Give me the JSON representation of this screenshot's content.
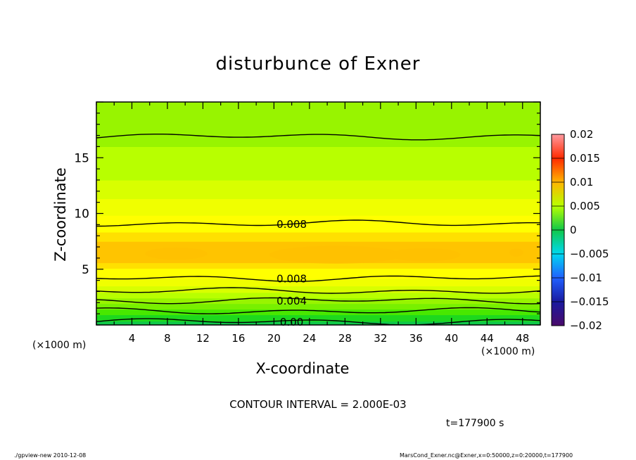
{
  "chart_data": {
    "type": "heatmap",
    "title": "disturbunce of Exner",
    "xlabel": "X-coordinate",
    "ylabel": "Z-coordinate",
    "x_unit_label": "(×1000 m)",
    "y_unit_label": "(×1000 m)",
    "xlim": [
      0,
      50
    ],
    "ylim": [
      0,
      20
    ],
    "xticks": [
      "4",
      "8",
      "12",
      "16",
      "20",
      "24",
      "28",
      "32",
      "36",
      "40",
      "44",
      "48"
    ],
    "yticks": [
      "5",
      "10",
      "15"
    ],
    "colorbar": {
      "min": -0.02,
      "max": 0.02,
      "ticks": [
        "0.02",
        "0.015",
        "0.01",
        "0.005",
        "0",
        "−0.005",
        "−0.01",
        "−0.015",
        "−0.02"
      ]
    },
    "profile": {
      "z": [
        0,
        0.5,
        1,
        1.5,
        2,
        2.5,
        3,
        3.5,
        4,
        4.5,
        5,
        5.5,
        6,
        6.5,
        7,
        8,
        9,
        10,
        11,
        12,
        12.5,
        13,
        14,
        15,
        16,
        17,
        18,
        19,
        20
      ],
      "value": [
        0.0005,
        0.0012,
        0.0022,
        0.0032,
        0.0042,
        0.0052,
        0.0062,
        0.007,
        0.0078,
        0.0084,
        0.0089,
        0.0094,
        0.0098,
        0.01,
        0.0098,
        0.0092,
        0.0086,
        0.0079,
        0.0072,
        0.0066,
        0.0063,
        0.006,
        0.0056,
        0.0053,
        0.005,
        0.0047,
        0.0044,
        0.0042,
        0.004
      ]
    },
    "contours": [
      {
        "level": 0.0,
        "label": "0.00",
        "z": 0.3
      },
      {
        "level": 0.002,
        "label": "",
        "z": 1.25
      },
      {
        "level": 0.004,
        "label": "0.004",
        "z": 2.2
      },
      {
        "level": 0.006,
        "label": "",
        "z": 3.05
      },
      {
        "level": 0.008,
        "label": "0.008",
        "z": 4.2
      },
      {
        "level": 0.008,
        "label": "0.008",
        "z": 9.1
      },
      {
        "level": 0.006,
        "label": "",
        "z": 16.9
      }
    ],
    "contour_interval_text": "CONTOUR INTERVAL = 2.000E-03",
    "time_text": "t=177900 s"
  },
  "footer": {
    "left": "./gpview-new  2010-12-08",
    "right": "MarsCond_Exner.nc@Exner,x=0:50000,z=0:20000,t=177900"
  },
  "colors": {
    "background": "#ffffff",
    "contour_line": "#000000"
  }
}
